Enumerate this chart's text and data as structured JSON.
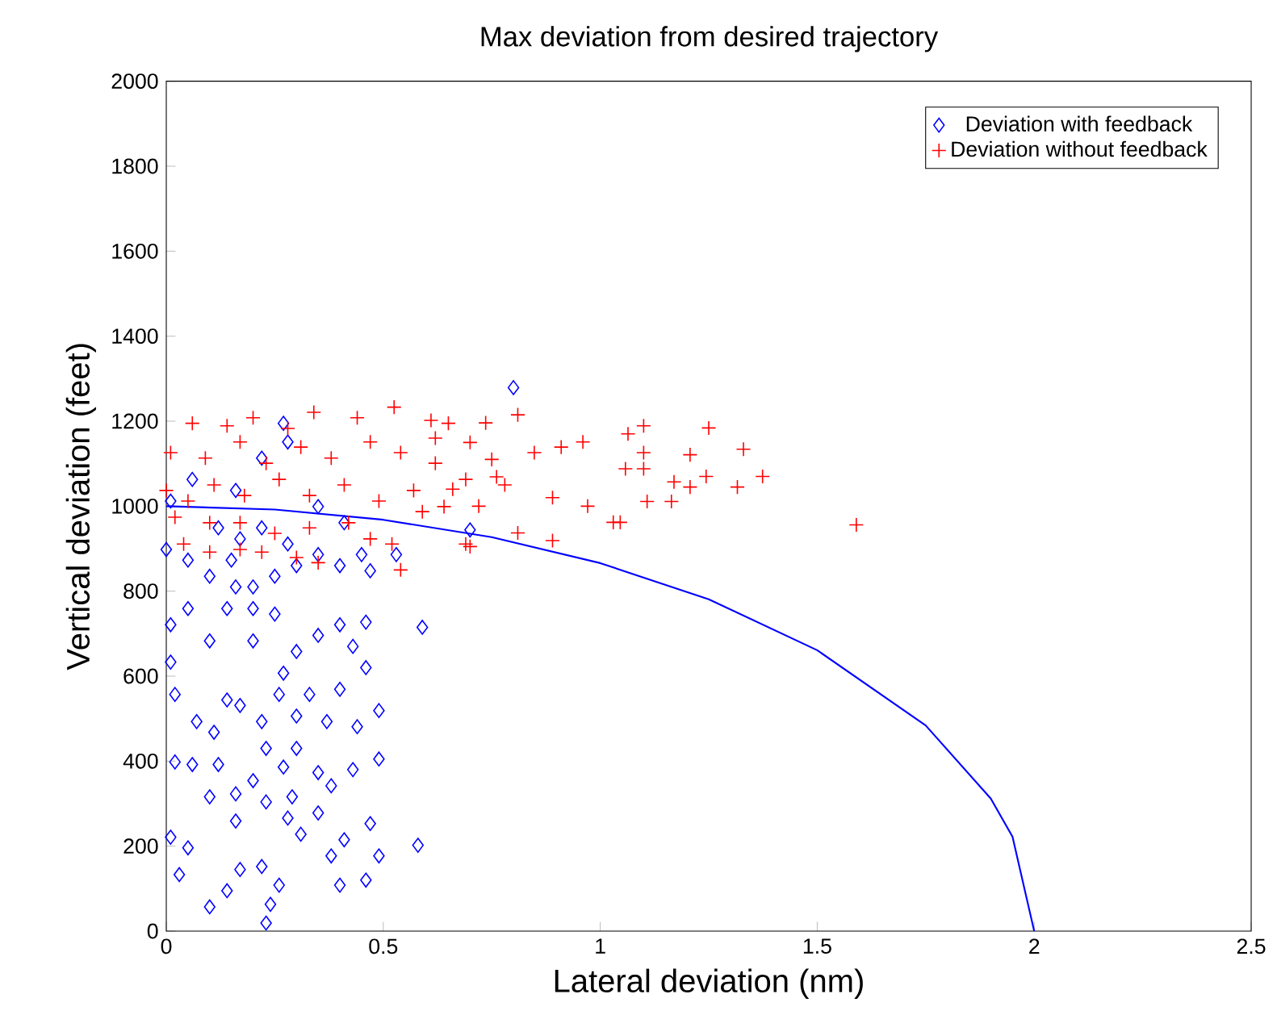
{
  "chart_data": {
    "type": "scatter",
    "title": "Max deviation from desired trajectory",
    "xlabel": "Lateral deviation (nm)",
    "ylabel": "Vertical deviation (feet)",
    "xlim": [
      0,
      2.5
    ],
    "xticks": [
      0,
      0.5,
      1,
      1.5,
      2,
      2.5
    ],
    "ylim": [
      0,
      2000
    ],
    "yticks": [
      0,
      200,
      400,
      600,
      800,
      1000,
      1200,
      1400,
      1600,
      1800,
      2000
    ],
    "legend": "top right",
    "grid": false,
    "series": [
      {
        "name": "Deviation with feedback",
        "color": "#0000ff",
        "marker": "diamond",
        "x": [
          0.01,
          0.05,
          0.03,
          0.1,
          0.14,
          0.17,
          0.22,
          0.24,
          0.23,
          0.26,
          0.28,
          0.31,
          0.38,
          0.4,
          0.41,
          0.47,
          0.46,
          0.49,
          0.58,
          0.02,
          0.06,
          0.1,
          0.12,
          0.16,
          0.16,
          0.2,
          0.23,
          0.27,
          0.29,
          0.35,
          0.38,
          0.43,
          0.49,
          0.02,
          0.01,
          0.07,
          0.11,
          0.14,
          0.17,
          0.22,
          0.26,
          0.3,
          0.33,
          0.37,
          0.4,
          0.44,
          0.49,
          0.46,
          0.43,
          0.4,
          0.46,
          0.59,
          0.01,
          0.05,
          0.1,
          0.14,
          0.2,
          0.25,
          0.3,
          0.35,
          0.0,
          0.05,
          0.1,
          0.15,
          0.2,
          0.25,
          0.3,
          0.35,
          0.4,
          0.45,
          0.47,
          0.53,
          0.01,
          0.06,
          0.16,
          0.22,
          0.27,
          0.28,
          0.35,
          0.41,
          0.17,
          0.12,
          0.22,
          0.28,
          0.2,
          0.16,
          0.27,
          0.23,
          0.3,
          0.35,
          0.8,
          0.7
        ],
        "values": [
          221,
          196,
          133,
          57,
          95,
          145,
          152,
          63,
          19,
          108,
          266,
          228,
          177,
          108,
          215,
          253,
          120,
          177,
          202,
          398,
          392,
          316,
          392,
          323,
          259,
          354,
          304,
          386,
          316,
          373,
          342,
          380,
          405,
          557,
          633,
          493,
          468,
          544,
          531,
          493,
          557,
          506,
          557,
          493,
          569,
          481,
          519,
          620,
          670,
          721,
          727,
          715,
          721,
          759,
          683,
          759,
          683,
          746,
          658,
          696,
          898,
          873,
          835,
          873,
          810,
          835,
          860,
          886,
          860,
          886,
          848,
          886,
          1012,
          1063,
          1037,
          1113,
          1195,
          1151,
          999,
          961,
          923,
          949,
          949,
          911,
          759,
          810,
          607,
          430,
          430,
          278,
          1279,
          944
        ]
      },
      {
        "name": "Deviation without feedback",
        "color": "#ff0000",
        "marker": "cross",
        "x": [
          1.59,
          1.374,
          1.33,
          1.316,
          1.25,
          1.244,
          1.207,
          1.207,
          1.17,
          1.164,
          1.108,
          1.1,
          1.1,
          1.064,
          1.1,
          1.058,
          1.046,
          1.03,
          0.971,
          0.96,
          0.89,
          0.89,
          0.91,
          0.848,
          0.81,
          0.81,
          0.736,
          0.761,
          0.7,
          0.525,
          0.34,
          0.06,
          0.14,
          0.2,
          0.28,
          0.44,
          0.61,
          0.65,
          0.01,
          0.09,
          0.17,
          0.23,
          0.31,
          0.38,
          0.47,
          0.54,
          0.62,
          0.69,
          0.0,
          0.05,
          0.11,
          0.18,
          0.26,
          0.33,
          0.41,
          0.49,
          0.57,
          0.64,
          0.02,
          0.1,
          0.17,
          0.25,
          0.33,
          0.42,
          0.47,
          0.52,
          0.59,
          0.69,
          0.04,
          0.1,
          0.17,
          0.22,
          0.3,
          0.35,
          0.54,
          0.7,
          0.75,
          0.78,
          0.72,
          0.66,
          0.62
        ],
        "values": [
          956,
          1070,
          1134,
          1045,
          1184,
          1070,
          1121,
          1045,
          1057,
          1011,
          1011,
          1189,
          1126,
          1170,
          1088,
          1088,
          962,
          962,
          1000,
          1151,
          919,
          1020,
          1139,
          1126,
          937,
          1215,
          1196,
          1069,
          905,
          1233,
          1221,
          1195,
          1189,
          1208,
          1183,
          1208,
          1202,
          1195,
          1126,
          1113,
          1151,
          1101,
          1139,
          1113,
          1151,
          1126,
          1101,
          1063,
          1037,
          1012,
          1050,
          1025,
          1063,
          1025,
          1050,
          1012,
          1037,
          999,
          974,
          961,
          961,
          936,
          949,
          961,
          923,
          911,
          987,
          911,
          911,
          892,
          898,
          892,
          879,
          867,
          850,
          1150,
          1110,
          1050,
          1000,
          1040,
          1160
        ]
      },
      {
        "type": "line",
        "color": "#0000ff",
        "marker": "none",
        "x": [
          0,
          0.25,
          0.5,
          0.75,
          1,
          1.25,
          1.5,
          1.75,
          1.9,
          1.95,
          2
        ],
        "values": [
          1000,
          992,
          968,
          927,
          866,
          781,
          661,
          484,
          312,
          222,
          0
        ]
      }
    ]
  }
}
